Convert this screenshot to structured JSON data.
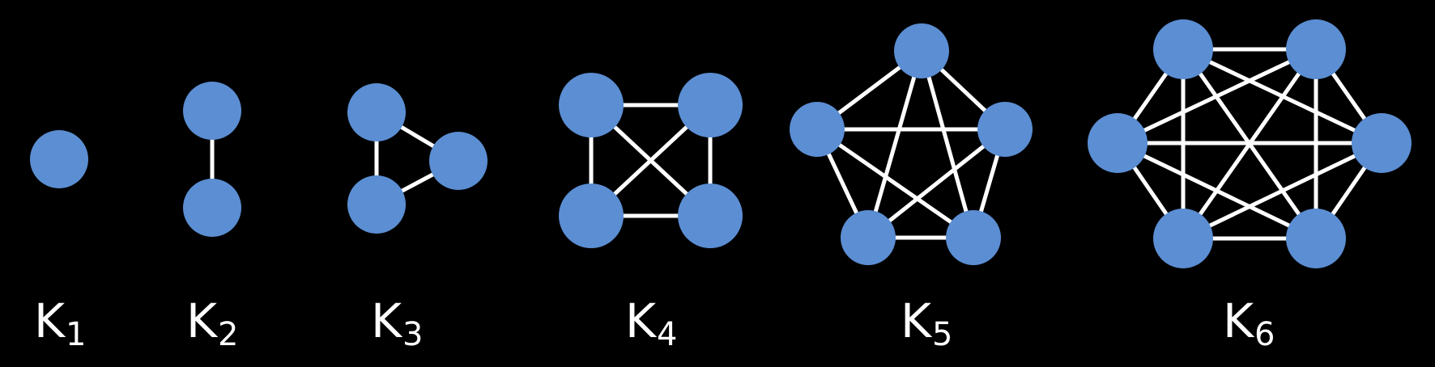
{
  "colors": {
    "background": "#000000",
    "node": "#5b8ed3",
    "edge": "#ffffff",
    "label": "#ffffff"
  },
  "graphs": [
    {
      "letter": "K",
      "subscript": "1",
      "vertices": 1
    },
    {
      "letter": "K",
      "subscript": "2",
      "vertices": 2
    },
    {
      "letter": "K",
      "subscript": "3",
      "vertices": 3
    },
    {
      "letter": "K",
      "subscript": "4",
      "vertices": 4
    },
    {
      "letter": "K",
      "subscript": "5",
      "vertices": 5
    },
    {
      "letter": "K",
      "subscript": "6",
      "vertices": 6
    }
  ]
}
